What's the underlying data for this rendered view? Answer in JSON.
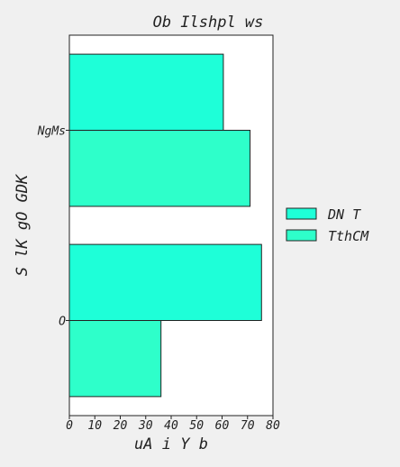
{
  "chart_data": {
    "type": "bar",
    "orientation": "horizontal",
    "title": "Ob Ilshpl  ws",
    "xlabel": "uA i Y  b",
    "ylabel": "S lK gO GDK",
    "xlim": [
      0,
      80
    ],
    "xticks": [
      "0",
      "10",
      "20",
      "30",
      "40",
      "50",
      "60",
      "70",
      "80"
    ],
    "categories": [
      "NgMs",
      "O"
    ],
    "series": [
      {
        "name": "DN T",
        "color": "#1effd8",
        "values": [
          60.5,
          75.5
        ]
      },
      {
        "name": "TthCM",
        "color": "#2effca",
        "values": [
          71,
          36
        ]
      }
    ],
    "legend": "right",
    "grid": false
  }
}
